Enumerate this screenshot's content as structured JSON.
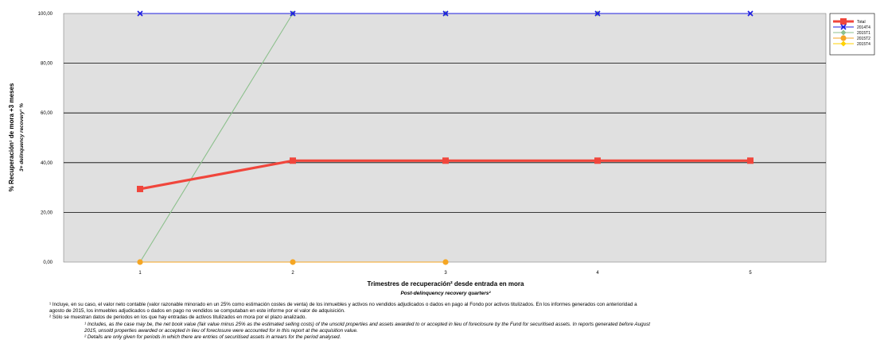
{
  "chart_data": {
    "type": "line",
    "x": [
      1,
      2,
      3,
      4,
      5
    ],
    "xlabel": "Trimestres de recuperación² desde entrada en mora",
    "xlabel_en": "Post-delinquency recovery quarters²",
    "ylabel": "% Recuperación¹ de mora +3 meses",
    "ylabel_en": "3+ delinquency recovery¹ %",
    "ylim": [
      0,
      100
    ],
    "yticks": [
      "0,00",
      "20,00",
      "40,00",
      "60,00",
      "80,00",
      "100,00"
    ],
    "xticks": [
      "1",
      "2",
      "3",
      "4",
      "5"
    ],
    "grid": true,
    "legend_position": "right",
    "series": [
      {
        "name": "Total",
        "color": "#f0463c",
        "marker": "square",
        "values": [
          29.4,
          40.8,
          40.8,
          40.8,
          40.8
        ]
      },
      {
        "name": "2014T4",
        "color": "#1f1fe0",
        "marker": "x",
        "values": [
          100,
          100,
          100,
          100,
          100
        ]
      },
      {
        "name": "2015T1",
        "color": "#8cc08c",
        "marker": "diamond",
        "values": [
          0,
          100,
          100,
          100,
          null
        ]
      },
      {
        "name": "2015T2",
        "color": "#f5a623",
        "marker": "circle",
        "values": [
          0,
          0,
          0,
          null,
          null
        ]
      },
      {
        "name": "2015T4",
        "color": "#ffd200",
        "marker": "diamond",
        "values": [
          0,
          null,
          null,
          null,
          null
        ]
      }
    ]
  },
  "notes": {
    "es_1": "¹ Incluye, en su caso, el valor neto contable (valor razonable minorado en un 25% como estimación costes de venta) de los inmuebles y activos no vendidos adjudicados o dados en pago al Fondo por activos titulizados. En los informes generados con anterioridad a",
    "es_1b": "agosto de 2015, los inmuebles adjudicados o dados en pago no vendidos se computaban en este informe por el valor de adquisición.",
    "es_2": "² Sólo se muestran datos de periodos en los que hay entradas de activos titulizados en mora por el plazo analizado.",
    "en_1": "¹ Includes, as the case may be, the net book value (fair value minus 25% as the estimated selling costs) of the unsold properties and assets awarded to or accepted in lieu of foreclosure by the Fund for securitised assets. In reports generated before August",
    "en_1b": "2015, unsold properties awarded or accepted in lieu of foreclosure were accounted for in this report at the acquisition value.",
    "en_2": "² Details are only given for periods in which there are entries of securitised assets in arrears for the period analysed."
  }
}
